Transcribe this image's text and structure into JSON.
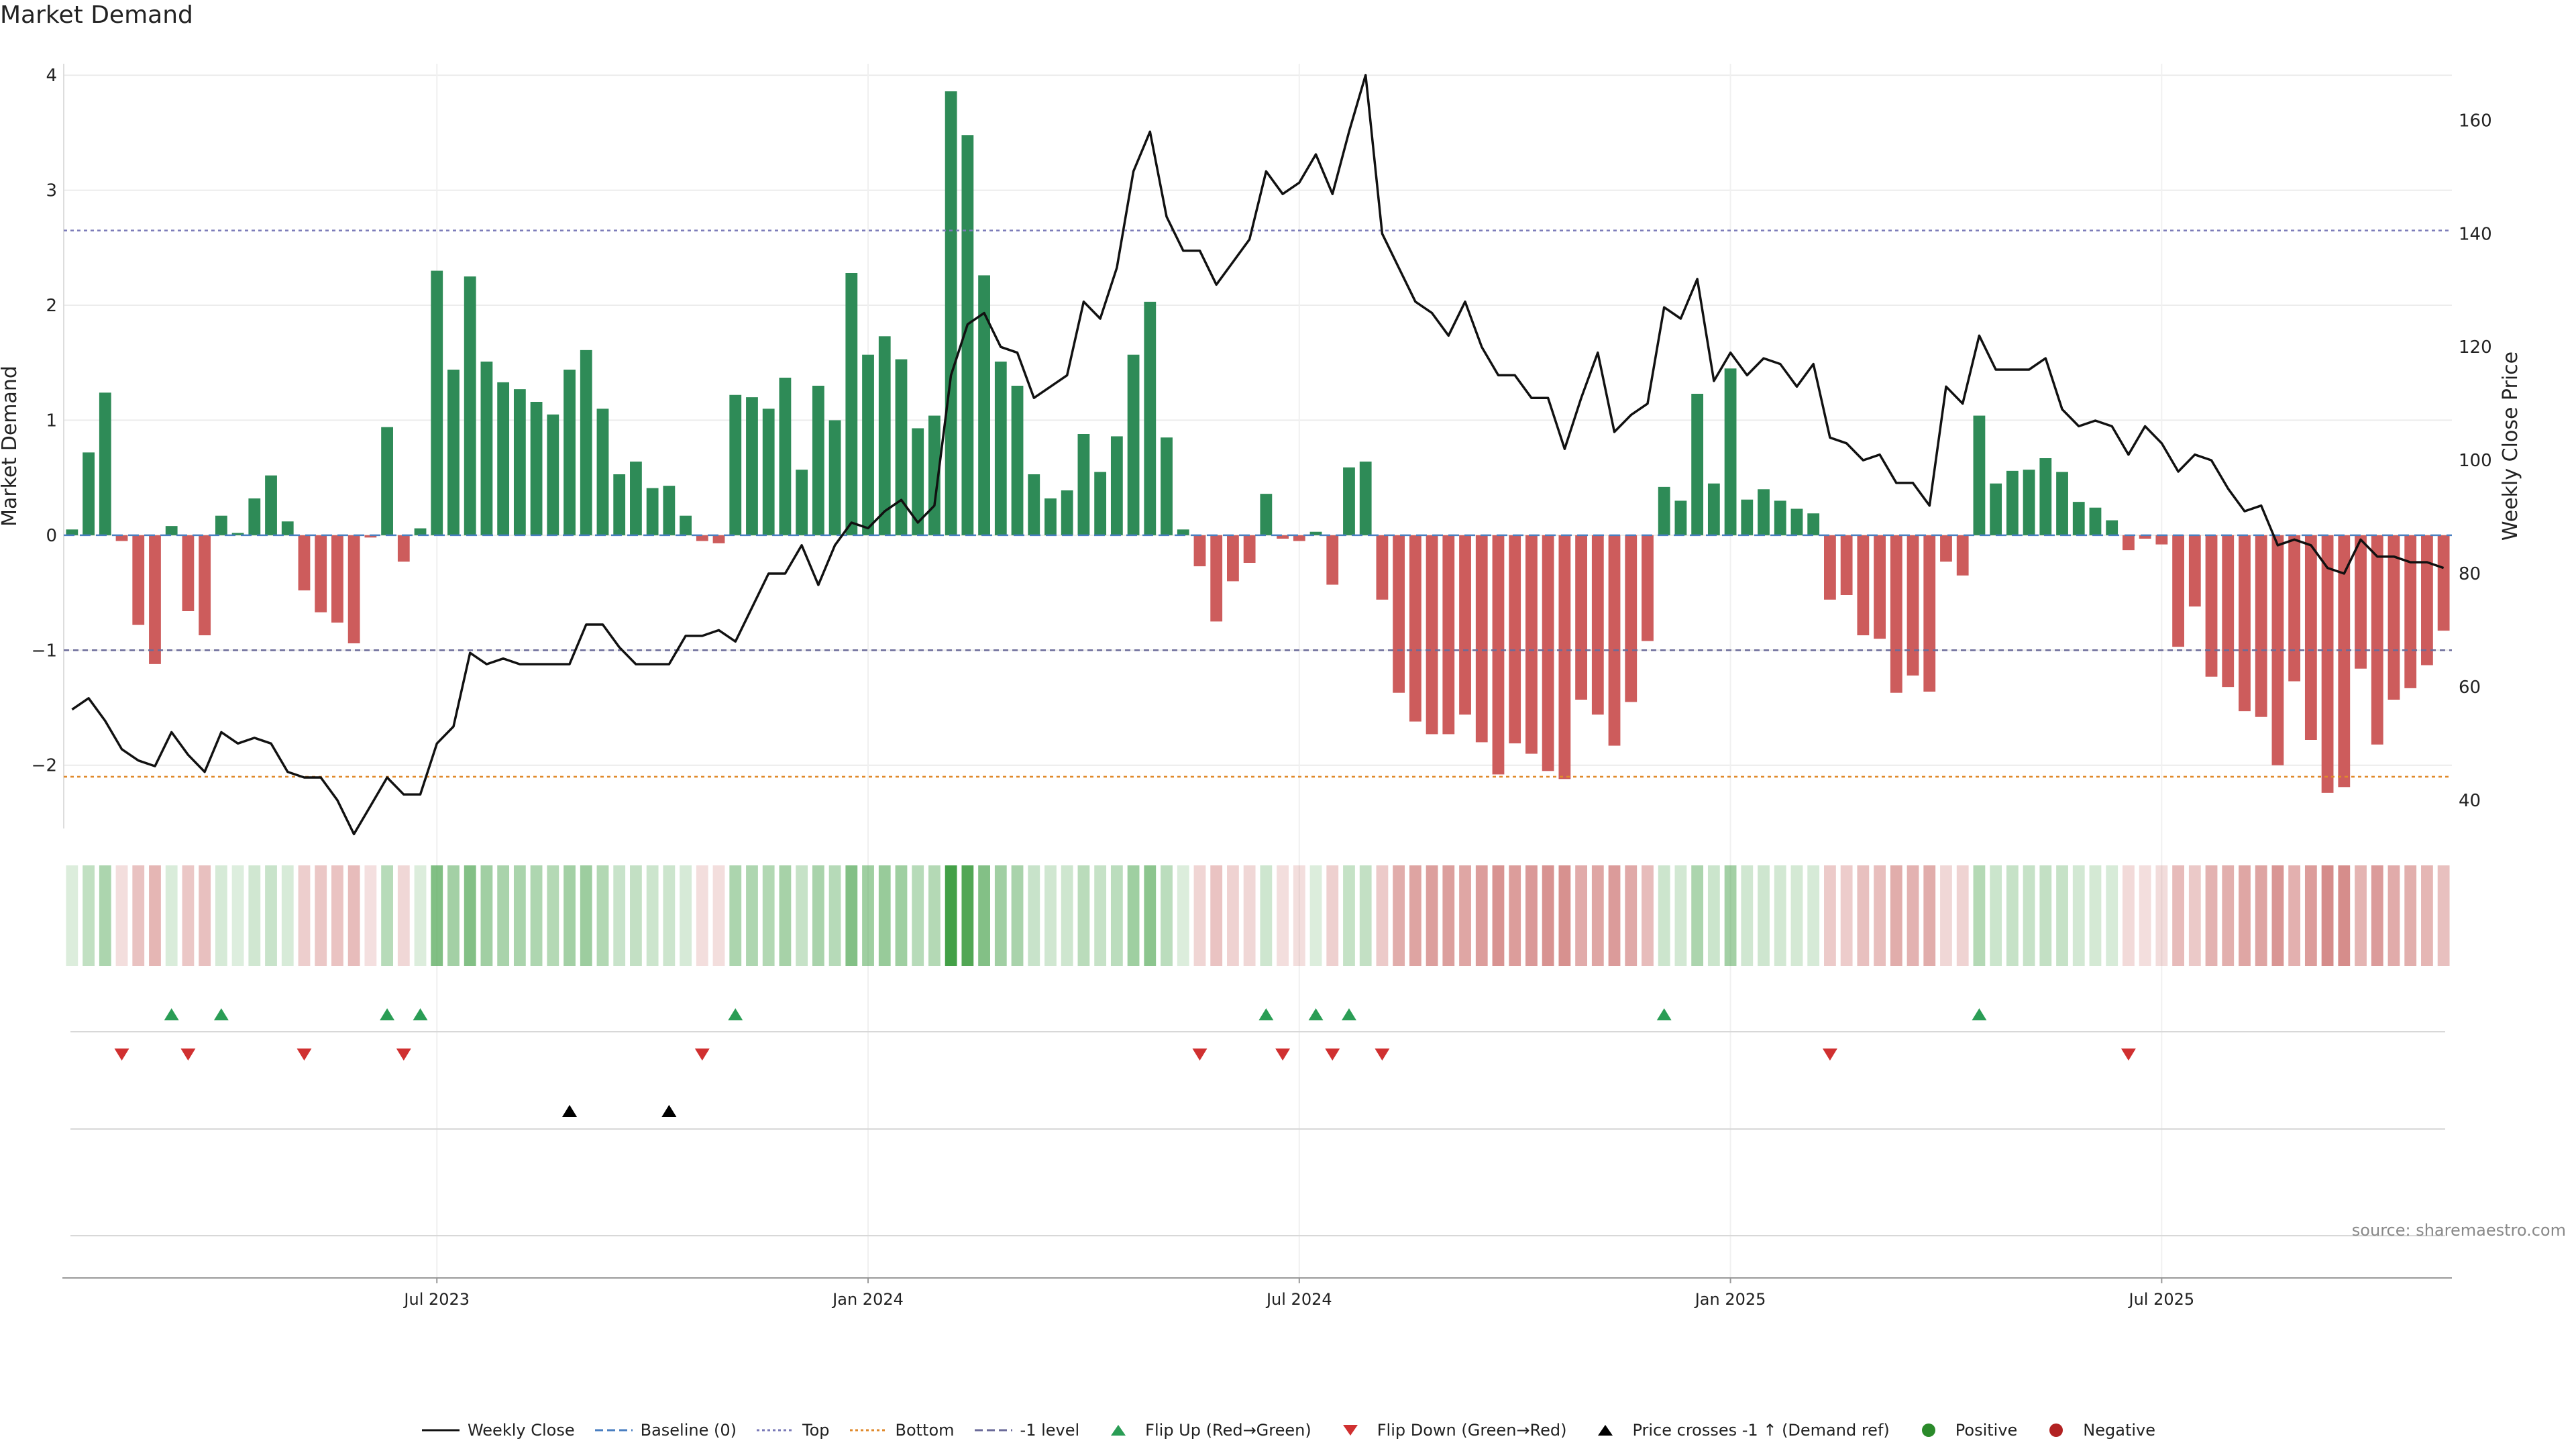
{
  "chart_data": {
    "type": "bar+line",
    "title": "Market Demand",
    "ylabel_left": "Market Demand",
    "ylabel_right": "Weekly Close Price",
    "ylim_left": [
      -2.55,
      4.1
    ],
    "ylim_right": [
      35,
      170
    ],
    "yticks_left": [
      4,
      3,
      2,
      1,
      0,
      -1,
      -2
    ],
    "yticks_left_labels": [
      "4",
      "3",
      "2",
      "1",
      "0",
      "−1",
      "−2"
    ],
    "yticks_right": [
      160,
      140,
      120,
      100,
      80,
      60,
      40
    ],
    "yticks_right_labels": [
      "160",
      "140",
      "120",
      "100",
      "80",
      "60",
      "40"
    ],
    "x_tick_labels": [
      {
        "label": "Jul 2023",
        "week": 22
      },
      {
        "label": "Jan 2024",
        "week": 48
      },
      {
        "label": "Jul 2024",
        "week": 74
      },
      {
        "label": "Jan 2025",
        "week": 100
      },
      {
        "label": "Jul 2025",
        "week": 126
      }
    ],
    "reference_lines": {
      "top": 2.65,
      "bottom": -2.1,
      "minus_one_level": -1,
      "baseline": 0
    },
    "demand": [
      0.05,
      0.72,
      1.24,
      -0.05,
      -0.78,
      -1.12,
      0.08,
      -0.66,
      -0.87,
      0.17,
      0.02,
      0.32,
      0.52,
      0.12,
      -0.48,
      -0.67,
      -0.76,
      -0.94,
      -0.02,
      0.94,
      -0.23,
      0.06,
      2.3,
      1.44,
      2.25,
      1.51,
      1.33,
      1.27,
      1.16,
      1.05,
      1.44,
      1.61,
      1.1,
      0.53,
      0.64,
      0.41,
      0.43,
      0.17,
      -0.05,
      -0.07,
      1.22,
      1.2,
      1.1,
      1.37,
      0.57,
      1.3,
      1.0,
      2.28,
      1.57,
      1.73,
      1.53,
      0.93,
      1.04,
      3.86,
      3.48,
      2.26,
      1.51,
      1.3,
      0.53,
      0.32,
      0.39,
      0.88,
      0.55,
      0.86,
      1.57,
      2.03,
      0.85,
      0.05,
      -0.27,
      -0.75,
      -0.4,
      -0.24,
      0.36,
      -0.03,
      -0.05,
      0.03,
      -0.43,
      0.59,
      0.64,
      -0.56,
      -1.37,
      -1.62,
      -1.73,
      -1.73,
      -1.56,
      -1.8,
      -2.08,
      -1.81,
      -1.9,
      -2.05,
      -2.12,
      -1.43,
      -1.56,
      -1.83,
      -1.45,
      -0.92,
      0.42,
      0.3,
      1.23,
      0.45,
      1.45,
      0.31,
      0.4,
      0.3,
      0.23,
      0.19,
      -0.56,
      -0.52,
      -0.87,
      -0.9,
      -1.37,
      -1.22,
      -1.36,
      -0.23,
      -0.35,
      1.04,
      0.45,
      0.56,
      0.57,
      0.67,
      0.55,
      0.29,
      0.24,
      0.13,
      -0.13,
      -0.03,
      -0.08,
      -0.97,
      -0.62,
      -1.23,
      -1.32,
      -1.53,
      -1.58,
      -2.0,
      -1.27,
      -1.78,
      -2.24,
      -2.19,
      -1.16,
      -1.82,
      -1.43,
      -1.33,
      -1.13,
      -0.83
    ],
    "weekly_close": [
      56,
      58,
      54,
      49,
      47,
      46,
      52,
      48,
      45,
      52,
      50,
      51,
      50,
      45,
      44,
      44,
      40,
      34,
      39,
      44,
      41,
      41,
      50,
      53,
      66,
      64,
      65,
      64,
      64,
      64,
      64,
      71,
      71,
      67,
      64,
      64,
      64,
      69,
      69,
      70,
      68,
      74,
      80,
      80,
      85,
      78,
      85,
      89,
      88,
      91,
      93,
      89,
      92,
      115,
      124,
      126,
      120,
      119,
      111,
      113,
      115,
      128,
      125,
      134,
      151,
      158,
      143,
      137,
      137,
      131,
      135,
      139,
      151,
      147,
      149,
      154,
      147,
      158,
      168,
      140,
      134,
      128,
      126,
      122,
      128,
      120,
      115,
      115,
      111,
      111,
      102,
      111,
      119,
      105,
      108,
      110,
      127,
      125,
      132,
      114,
      119,
      115,
      118,
      117,
      113,
      117,
      104,
      103,
      100,
      101,
      96,
      96,
      92,
      113,
      110,
      122,
      116,
      116,
      116,
      118,
      109,
      106,
      107,
      106,
      101,
      106,
      103,
      98,
      101,
      100,
      95,
      91,
      92,
      85,
      86,
      85,
      81,
      80,
      86,
      83,
      83,
      82,
      82,
      81
    ],
    "flip_up_weeks": [
      6,
      9,
      19,
      21,
      40,
      72,
      75,
      77,
      96,
      115
    ],
    "flip_down_weeks": [
      3,
      7,
      14,
      20,
      38,
      68,
      73,
      76,
      79,
      106,
      124
    ],
    "price_cross_weeks": [
      30,
      36
    ]
  },
  "legend": [
    {
      "label": "Weekly Close",
      "color": "#111111",
      "marker": "line"
    },
    {
      "label": "Baseline (0)",
      "color": "#4a7fc1",
      "marker": "dash"
    },
    {
      "label": "Top",
      "color": "#7a7ab8",
      "marker": "dot"
    },
    {
      "label": "Bottom",
      "color": "#e08a2c",
      "marker": "dot"
    },
    {
      "label": "-1 level",
      "color": "#6b6b9a",
      "marker": "dash"
    },
    {
      "label": "Flip Up (Red→Green)",
      "color": "#2a9d55",
      "marker": "triangle-up"
    },
    {
      "label": "Flip Down (Green→Red)",
      "color": "#d03030",
      "marker": "triangle-down"
    },
    {
      "label": "Price crosses -1 ↑ (Demand ref)",
      "color": "#000000",
      "marker": "triangle-up"
    },
    {
      "label": "Positive",
      "color": "#2a8a2a",
      "marker": "circle"
    },
    {
      "label": "Negative",
      "color": "#b22222",
      "marker": "circle"
    }
  ],
  "colors": {
    "positive_bar": "#2e8b57",
    "negative_bar": "#cd5c5c",
    "heat_positive": "#43a047",
    "heat_negative": "#c0504d"
  },
  "source_text": "source: sharemaestro.com"
}
